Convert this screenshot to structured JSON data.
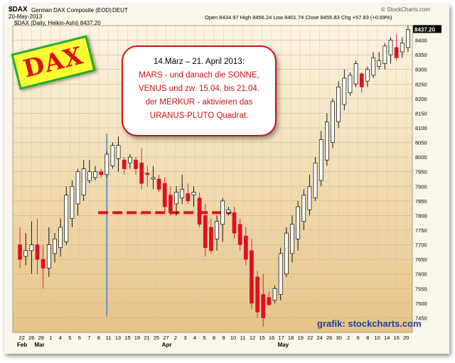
{
  "header": {
    "symbol": "$DAX",
    "name": "German DAX Composite (EOD)",
    "exchange": "DEUT",
    "date": "20-May-2013",
    "source": "© StockCharts.com",
    "quote": "Open 8434.97   High 8456.24   Low 8401.74   Close 8455.83   Chg +57.83 (+0.69%)",
    "legend": "$DAX (Daily, Heikin-Ashi) 8437.20",
    "last_price_label": "8437.20"
  },
  "badge": {
    "text": "DAX"
  },
  "note": {
    "line1": "14.März – 21. April 2013:",
    "line2": "MARS - und danach die SONNE,",
    "line3": "VENUS und zw. 15.04. bis 21.04.",
    "line4": "der MERKUR - aktivieren das",
    "line5": "URANUS-PLUTO Quadrat."
  },
  "credit": {
    "text": "grafik: stockcharts.com"
  },
  "colors": {
    "up_body": "#ffffff",
    "down_body": "#dd1122",
    "outline": "#000000",
    "dashed_line": "#e01010",
    "vertical_line": "#3a7bd5",
    "note_red": "#cc1111"
  },
  "chart_data": {
    "type": "candlestick",
    "style": "Heikin-Ashi",
    "ylim": [
      7400,
      8450
    ],
    "yticks": [
      7450,
      7500,
      7550,
      7600,
      7650,
      7700,
      7750,
      7800,
      7850,
      7900,
      7950,
      8000,
      8050,
      8100,
      8150,
      8200,
      8250,
      8300,
      8350,
      8400
    ],
    "x_day_labels": [
      "22",
      "26",
      "28",
      "1",
      "4",
      "5",
      "6",
      "7",
      "8",
      "11",
      "13",
      "15",
      "19",
      "21",
      "25",
      "27",
      "2",
      "3",
      "4",
      "5",
      "8",
      "9",
      "10",
      "11",
      "12",
      "15",
      "16",
      "17",
      "18",
      "19",
      "22",
      "24",
      "26",
      "30",
      "2",
      "6",
      "8",
      "10",
      "14",
      "16",
      "20"
    ],
    "x_month_labels": [
      {
        "label": "Feb",
        "index": 0
      },
      {
        "label": "Mar",
        "index": 3
      },
      {
        "label": "Apr",
        "index": 25
      },
      {
        "label": "May",
        "index": 45
      }
    ],
    "vertical_marker_index": 15,
    "horizontal_marker": {
      "y": 7810,
      "from_index": 14,
      "to_index": 36
    },
    "candles": [
      {
        "o": 7700,
        "h": 7760,
        "l": 7620,
        "c": 7650
      },
      {
        "o": 7660,
        "h": 7740,
        "l": 7630,
        "c": 7680
      },
      {
        "o": 7680,
        "h": 7780,
        "l": 7600,
        "c": 7700
      },
      {
        "o": 7700,
        "h": 7790,
        "l": 7600,
        "c": 7650
      },
      {
        "o": 7650,
        "h": 7700,
        "l": 7550,
        "c": 7620
      },
      {
        "o": 7620,
        "h": 7760,
        "l": 7590,
        "c": 7700
      },
      {
        "o": 7670,
        "h": 7740,
        "l": 7640,
        "c": 7720
      },
      {
        "o": 7690,
        "h": 7790,
        "l": 7660,
        "c": 7760
      },
      {
        "o": 7710,
        "h": 7900,
        "l": 7700,
        "c": 7870
      },
      {
        "o": 7790,
        "h": 7920,
        "l": 7760,
        "c": 7900
      },
      {
        "o": 7840,
        "h": 7960,
        "l": 7800,
        "c": 7950
      },
      {
        "o": 7870,
        "h": 7990,
        "l": 7850,
        "c": 7960
      },
      {
        "o": 7920,
        "h": 7990,
        "l": 7910,
        "c": 7950
      },
      {
        "o": 7930,
        "h": 7970,
        "l": 7920,
        "c": 7950
      },
      {
        "o": 7950,
        "h": 7960,
        "l": 7930,
        "c": 7940
      },
      {
        "o": 7940,
        "h": 8020,
        "l": 7930,
        "c": 8010
      },
      {
        "o": 7970,
        "h": 8050,
        "l": 7960,
        "c": 8040
      },
      {
        "o": 7995,
        "h": 8070,
        "l": 7950,
        "c": 8040
      },
      {
        "o": 7990,
        "h": 8000,
        "l": 7940,
        "c": 7960
      },
      {
        "o": 7980,
        "h": 8010,
        "l": 7960,
        "c": 8000
      },
      {
        "o": 7990,
        "h": 8000,
        "l": 7940,
        "c": 7960
      },
      {
        "o": 7980,
        "h": 8030,
        "l": 7890,
        "c": 7910
      },
      {
        "o": 7945,
        "h": 7970,
        "l": 7900,
        "c": 7940
      },
      {
        "o": 7925,
        "h": 7970,
        "l": 7890,
        "c": 7930
      },
      {
        "o": 7925,
        "h": 7940,
        "l": 7880,
        "c": 7890
      },
      {
        "o": 7910,
        "h": 7930,
        "l": 7810,
        "c": 7830
      },
      {
        "o": 7870,
        "h": 7900,
        "l": 7800,
        "c": 7810
      },
      {
        "o": 7840,
        "h": 7900,
        "l": 7800,
        "c": 7880
      },
      {
        "o": 7860,
        "h": 7940,
        "l": 7840,
        "c": 7890
      },
      {
        "o": 7875,
        "h": 7910,
        "l": 7840,
        "c": 7850
      },
      {
        "o": 7870,
        "h": 7900,
        "l": 7830,
        "c": 7880
      },
      {
        "o": 7860,
        "h": 7880,
        "l": 7760,
        "c": 7770
      },
      {
        "o": 7800,
        "h": 7840,
        "l": 7660,
        "c": 7690
      },
      {
        "o": 7760,
        "h": 7790,
        "l": 7670,
        "c": 7680
      },
      {
        "o": 7720,
        "h": 7800,
        "l": 7680,
        "c": 7780
      },
      {
        "o": 7770,
        "h": 7860,
        "l": 7710,
        "c": 7850
      },
      {
        "o": 7810,
        "h": 7830,
        "l": 7800,
        "c": 7820
      },
      {
        "o": 7810,
        "h": 7830,
        "l": 7720,
        "c": 7740
      },
      {
        "o": 7770,
        "h": 7790,
        "l": 7680,
        "c": 7700
      },
      {
        "o": 7730,
        "h": 7760,
        "l": 7630,
        "c": 7650
      },
      {
        "o": 7680,
        "h": 7720,
        "l": 7480,
        "c": 7500
      },
      {
        "o": 7590,
        "h": 7610,
        "l": 7450,
        "c": 7470
      },
      {
        "o": 7530,
        "h": 7600,
        "l": 7420,
        "c": 7450
      },
      {
        "o": 7520,
        "h": 7540,
        "l": 7490,
        "c": 7495
      },
      {
        "o": 7510,
        "h": 7560,
        "l": 7500,
        "c": 7550
      },
      {
        "o": 7530,
        "h": 7690,
        "l": 7510,
        "c": 7670
      },
      {
        "o": 7600,
        "h": 7760,
        "l": 7590,
        "c": 7740
      },
      {
        "o": 7670,
        "h": 7800,
        "l": 7640,
        "c": 7770
      },
      {
        "o": 7720,
        "h": 7850,
        "l": 7680,
        "c": 7830
      },
      {
        "o": 7780,
        "h": 7890,
        "l": 7750,
        "c": 7870
      },
      {
        "o": 7820,
        "h": 7940,
        "l": 7800,
        "c": 7900
      },
      {
        "o": 7860,
        "h": 8000,
        "l": 7850,
        "c": 7980
      },
      {
        "o": 7920,
        "h": 8090,
        "l": 7900,
        "c": 8060
      },
      {
        "o": 7990,
        "h": 8150,
        "l": 7970,
        "c": 8120
      },
      {
        "o": 8050,
        "h": 8200,
        "l": 8030,
        "c": 8190
      },
      {
        "o": 8120,
        "h": 8260,
        "l": 8100,
        "c": 8240
      },
      {
        "o": 8180,
        "h": 8300,
        "l": 8160,
        "c": 8270
      },
      {
        "o": 8220,
        "h": 8290,
        "l": 8210,
        "c": 8280
      },
      {
        "o": 8250,
        "h": 8330,
        "l": 8240,
        "c": 8320
      },
      {
        "o": 8285,
        "h": 8290,
        "l": 8220,
        "c": 8240
      },
      {
        "o": 8260,
        "h": 8310,
        "l": 8240,
        "c": 8300
      },
      {
        "o": 8280,
        "h": 8360,
        "l": 8270,
        "c": 8340
      },
      {
        "o": 8310,
        "h": 8360,
        "l": 8300,
        "c": 8330
      },
      {
        "o": 8320,
        "h": 8390,
        "l": 8300,
        "c": 8380
      },
      {
        "o": 8350,
        "h": 8410,
        "l": 8320,
        "c": 8400
      },
      {
        "o": 8375,
        "h": 8420,
        "l": 8330,
        "c": 8340
      },
      {
        "o": 8360,
        "h": 8410,
        "l": 8340,
        "c": 8390
      },
      {
        "o": 8375,
        "h": 8450,
        "l": 8360,
        "c": 8437
      }
    ]
  }
}
